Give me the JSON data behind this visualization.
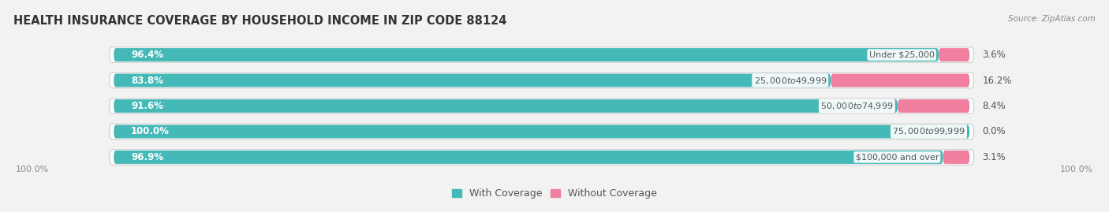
{
  "title": "HEALTH INSURANCE COVERAGE BY HOUSEHOLD INCOME IN ZIP CODE 88124",
  "source": "Source: ZipAtlas.com",
  "categories": [
    "Under $25,000",
    "$25,000 to $49,999",
    "$50,000 to $74,999",
    "$75,000 to $99,999",
    "$100,000 and over"
  ],
  "with_coverage": [
    96.4,
    83.8,
    91.6,
    100.0,
    96.9
  ],
  "without_coverage": [
    3.6,
    16.2,
    8.4,
    0.0,
    3.1
  ],
  "color_with": "#45b8b8",
  "color_without": "#f07fa0",
  "bg_color": "#f2f2f2",
  "bar_bg": "#e0e0e0",
  "title_fontsize": 10.5,
  "label_fontsize": 8.5,
  "legend_fontsize": 9,
  "axis_label_fontsize": 8
}
